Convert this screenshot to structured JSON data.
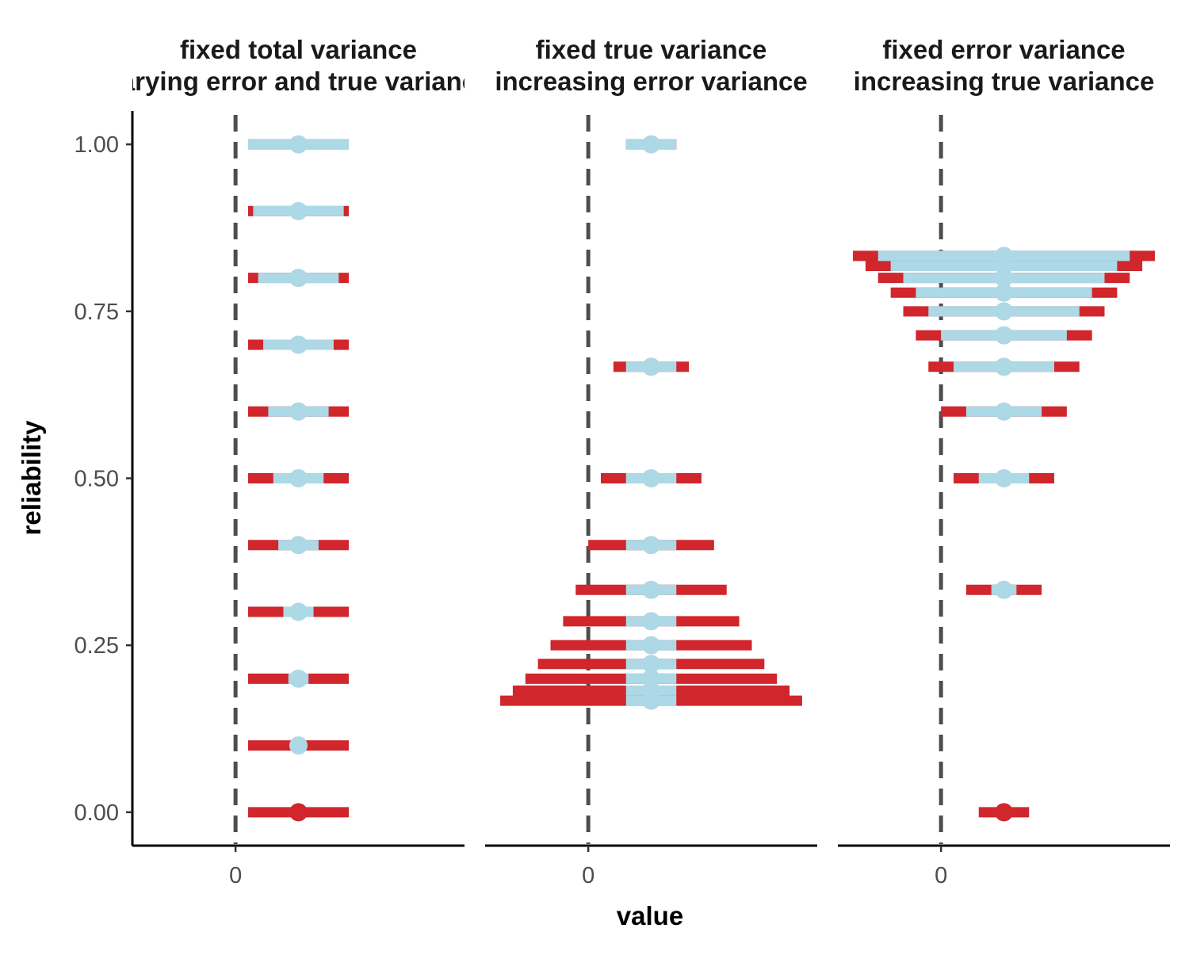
{
  "chart_data": {
    "type": "errorbar-facets",
    "xlabel": "value",
    "ylabel": "reliability",
    "y_ticks": [
      "0.00",
      "0.25",
      "0.50",
      "0.75",
      "1.00"
    ],
    "y_tick_values": [
      0,
      0.25,
      0.5,
      0.75,
      1
    ],
    "ylim": [
      -0.05,
      1.05
    ],
    "x_ticks": [
      "0"
    ],
    "x_tick_values": [
      0
    ],
    "xlim": [
      -0.82,
      1.82
    ],
    "reference_line": {
      "x": 0,
      "style": "dashed"
    },
    "estimate": 0.5,
    "colors": {
      "true_interval": "#add8e6",
      "error_interval": "#d0262c",
      "reference": "#4d4d4d"
    },
    "panels": [
      {
        "title_line1": "fixed total variance",
        "title_line2": "varying error and true variance",
        "points": [
          {
            "reliability": 1.0,
            "true_half": 0.4,
            "total_half": 0.4
          },
          {
            "reliability": 0.9,
            "true_half": 0.36,
            "total_half": 0.4
          },
          {
            "reliability": 0.8,
            "true_half": 0.32,
            "total_half": 0.4
          },
          {
            "reliability": 0.7,
            "true_half": 0.28,
            "total_half": 0.4
          },
          {
            "reliability": 0.6,
            "true_half": 0.24,
            "total_half": 0.4
          },
          {
            "reliability": 0.5,
            "true_half": 0.2,
            "total_half": 0.4
          },
          {
            "reliability": 0.4,
            "true_half": 0.16,
            "total_half": 0.4
          },
          {
            "reliability": 0.3,
            "true_half": 0.12,
            "total_half": 0.4
          },
          {
            "reliability": 0.2,
            "true_half": 0.08,
            "total_half": 0.4
          },
          {
            "reliability": 0.1,
            "true_half": 0.04,
            "total_half": 0.4
          },
          {
            "reliability": 0.0,
            "true_half": 0.0,
            "total_half": 0.4
          }
        ]
      },
      {
        "title_line1": "fixed true variance",
        "title_line2": "increasing error variance",
        "points": [
          {
            "reliability": 1.0,
            "true_half": 0.2,
            "total_half": 0.2
          },
          {
            "reliability": 0.667,
            "true_half": 0.2,
            "total_half": 0.3
          },
          {
            "reliability": 0.5,
            "true_half": 0.2,
            "total_half": 0.4
          },
          {
            "reliability": 0.4,
            "true_half": 0.2,
            "total_half": 0.5
          },
          {
            "reliability": 0.333,
            "true_half": 0.2,
            "total_half": 0.6
          },
          {
            "reliability": 0.286,
            "true_half": 0.2,
            "total_half": 0.7
          },
          {
            "reliability": 0.25,
            "true_half": 0.2,
            "total_half": 0.8
          },
          {
            "reliability": 0.222,
            "true_half": 0.2,
            "total_half": 0.9
          },
          {
            "reliability": 0.2,
            "true_half": 0.2,
            "total_half": 1.0
          },
          {
            "reliability": 0.182,
            "true_half": 0.2,
            "total_half": 1.1
          },
          {
            "reliability": 0.167,
            "true_half": 0.2,
            "total_half": 1.2
          }
        ]
      },
      {
        "title_line1": "fixed error variance",
        "title_line2": "increasing true variance",
        "points": [
          {
            "reliability": 0.0,
            "true_half": 0.0,
            "total_half": 0.2
          },
          {
            "reliability": 0.333,
            "true_half": 0.1,
            "total_half": 0.3
          },
          {
            "reliability": 0.5,
            "true_half": 0.2,
            "total_half": 0.4
          },
          {
            "reliability": 0.6,
            "true_half": 0.3,
            "total_half": 0.5
          },
          {
            "reliability": 0.667,
            "true_half": 0.4,
            "total_half": 0.6
          },
          {
            "reliability": 0.714,
            "true_half": 0.5,
            "total_half": 0.7
          },
          {
            "reliability": 0.75,
            "true_half": 0.6,
            "total_half": 0.8
          },
          {
            "reliability": 0.778,
            "true_half": 0.7,
            "total_half": 0.9
          },
          {
            "reliability": 0.8,
            "true_half": 0.8,
            "total_half": 1.0
          },
          {
            "reliability": 0.818,
            "true_half": 0.9,
            "total_half": 1.1
          },
          {
            "reliability": 0.833,
            "true_half": 1.0,
            "total_half": 1.2
          }
        ]
      }
    ]
  }
}
